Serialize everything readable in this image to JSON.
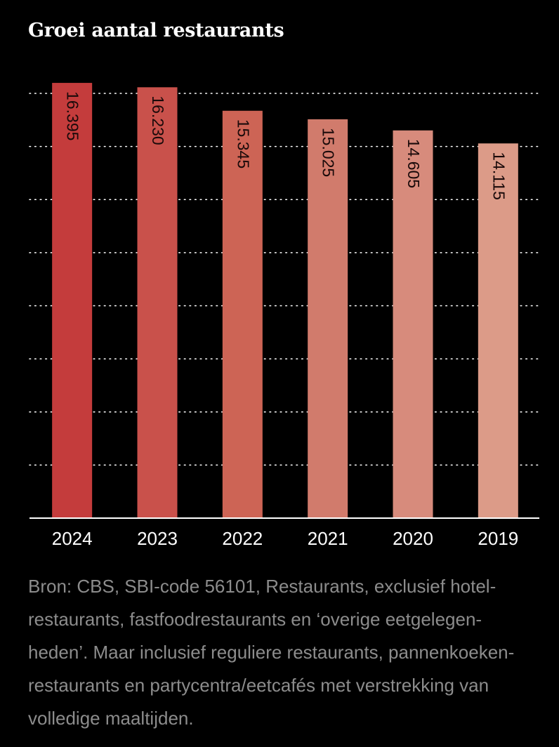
{
  "chart_data": {
    "type": "bar",
    "title": "Groei aantal restaurants",
    "categories": [
      "2024",
      "2023",
      "2022",
      "2021",
      "2020",
      "2019"
    ],
    "values": [
      16395,
      16230,
      15345,
      15025,
      14605,
      14115
    ],
    "value_labels": [
      "16.395",
      "16.230",
      "15.345",
      "15.025",
      "14.605",
      "14.115"
    ],
    "bar_colors": [
      "#c43c3c",
      "#c9514b",
      "#cd6455",
      "#d17b6c",
      "#d78b7c",
      "#dc9b88"
    ],
    "ylim": [
      0,
      16000
    ],
    "grid": true,
    "xlabel": "",
    "ylabel": ""
  },
  "source_lines": [
    "Bron: CBS, SBI-code 56101, Restaurants, exclusief hotel-",
    "restaurants, fastfoodrestaurants en ‘overige eetgelegen-",
    "heden’. Maar inclusief reguliere restaurants, pannenkoeken-",
    "restaurants en partycentra/eetcafés met verstrekking van",
    "volledige maaltijden."
  ]
}
